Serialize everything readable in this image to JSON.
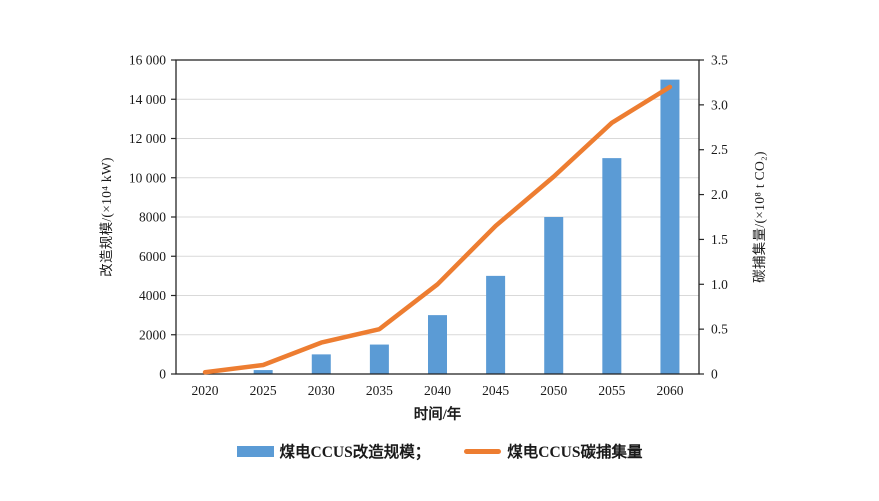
{
  "chart_data": {
    "type": "bar",
    "subtype": "bar+line dual-axis combo",
    "title": "",
    "categories": [
      "2020",
      "2025",
      "2030",
      "2035",
      "2040",
      "2045",
      "2050",
      "2055",
      "2060"
    ],
    "series": [
      {
        "name": "煤电CCUS改造规模",
        "type": "bar",
        "axis": "left",
        "color": "#5b9bd5",
        "values": [
          0,
          200,
          1000,
          1500,
          3000,
          5000,
          8000,
          11000,
          15000
        ]
      },
      {
        "name": "煤电CCUS碳捕集量",
        "type": "line",
        "axis": "right",
        "color": "#ed7d31",
        "values": [
          0.02,
          0.1,
          0.35,
          0.5,
          1.0,
          1.65,
          2.2,
          2.8,
          3.2
        ]
      }
    ],
    "x_axis": {
      "label": "时间/年",
      "tick_labels": [
        "2020",
        "2025",
        "2030",
        "2035",
        "2040",
        "2045",
        "2050",
        "2055",
        "2060"
      ]
    },
    "left_axis": {
      "label": "改造规模/(×10⁴ kW)",
      "min": 0,
      "max": 16000,
      "tick_step": 2000,
      "tick_labels": [
        "0",
        "2000",
        "4000",
        "6000",
        "8000",
        "10 000",
        "12 000",
        "14 000",
        "16 000"
      ]
    },
    "right_axis": {
      "label": "碳捕集量/(×10⁸ t CO₂)",
      "min": 0,
      "max": 3.5,
      "tick_step": 0.5,
      "tick_labels": [
        "0",
        "0.5",
        "1.0",
        "1.5",
        "2.0",
        "2.5",
        "3.0",
        "3.5"
      ]
    },
    "grid": true,
    "legend": {
      "position": "bottom",
      "items": [
        {
          "label": "煤电CCUS改造规模；",
          "swatch": "bar",
          "color": "#5b9bd5"
        },
        {
          "label": "煤电CCUS碳捕集量",
          "swatch": "line",
          "color": "#ed7d31"
        }
      ]
    }
  },
  "style": {
    "bar_color": "#5b9bd5",
    "line_color": "#ed7d31",
    "grid_color": "#d9d9d9",
    "axis_color": "#262626",
    "text_color": "#1a1a1a",
    "background": "#ffffff"
  }
}
